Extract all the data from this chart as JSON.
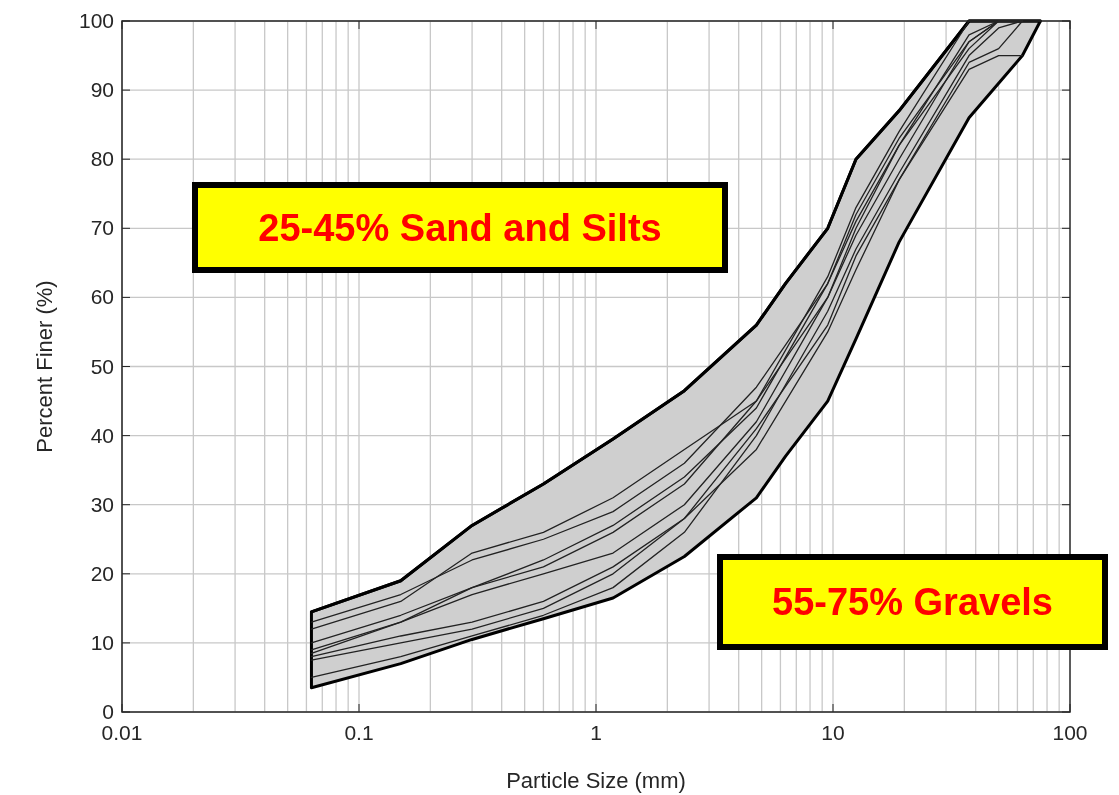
{
  "chart_data": {
    "type": "line",
    "xlabel": "Particle Size (mm)",
    "ylabel": "Percent Finer (%)",
    "log": "x",
    "grid": true,
    "marker": "none",
    "line_style": "solid",
    "xlim": [
      0.01,
      100
    ],
    "xticks": [
      0.01,
      0.1,
      1,
      10,
      100
    ],
    "ylim": [
      0,
      100
    ],
    "yticks": [
      0,
      10,
      20,
      30,
      40,
      50,
      60,
      70,
      80,
      90,
      100
    ],
    "annotations": [
      "25-45% Sand and Silts",
      "55-75% Gravels"
    ],
    "series": [
      {
        "color": "#000000",
        "x": [
          0.063,
          0.15,
          0.3,
          0.6,
          1.18,
          2.36,
          4.75,
          6.3,
          9.5,
          12.5,
          19,
          37.5,
          50,
          63,
          75
        ],
        "values": [
          14.5,
          19,
          27,
          33,
          39.5,
          46.5,
          56,
          62,
          70,
          80,
          87,
          100,
          100,
          100,
          100
        ],
        "lower": [
          3.5,
          7,
          10.5,
          13.5,
          16.5,
          22.5,
          31,
          37,
          45,
          54,
          68,
          86,
          91,
          95,
          100
        ],
        "upper": [
          14.5,
          19,
          27,
          33,
          39.5,
          46.5,
          56,
          62,
          70,
          80,
          87,
          100,
          100,
          100,
          100
        ]
      },
      {
        "color": "#222222",
        "x": [
          0.063,
          0.15,
          0.3,
          0.6,
          1.18,
          2.36,
          4.75,
          9.5,
          12.5,
          19,
          37.5,
          50,
          63
        ],
        "values": [
          13,
          17,
          22,
          25,
          29,
          36,
          47,
          62,
          72,
          83,
          97,
          100,
          100
        ]
      },
      {
        "color": "#222222",
        "x": [
          0.063,
          0.15,
          0.3,
          0.6,
          1.18,
          2.36,
          4.75,
          9.5,
          12.5,
          19,
          37.5,
          50,
          63
        ],
        "values": [
          12,
          16,
          23,
          26,
          31,
          38,
          45,
          60,
          70,
          82,
          98,
          100,
          100
        ]
      },
      {
        "color": "#222222",
        "x": [
          0.063,
          0.15,
          0.3,
          0.6,
          1.18,
          2.36,
          4.75,
          9.5,
          12.5,
          19,
          37.5,
          50,
          63
        ],
        "values": [
          10,
          14,
          18,
          21,
          26,
          33,
          45,
          63,
          73,
          84,
          100,
          100,
          100
        ]
      },
      {
        "color": "#222222",
        "x": [
          0.063,
          0.15,
          0.3,
          0.6,
          1.18,
          2.36,
          4.75,
          9.5,
          12.5,
          19,
          37.5,
          50,
          63
        ],
        "values": [
          9,
          13,
          18,
          22,
          27,
          34,
          44,
          62,
          71,
          82,
          96,
          100,
          100
        ]
      },
      {
        "color": "#222222",
        "x": [
          0.063,
          0.15,
          0.3,
          0.6,
          1.18,
          2.36,
          4.75,
          9.5,
          12.5,
          19,
          37.5,
          50,
          63
        ],
        "values": [
          8.5,
          13,
          17,
          20,
          23,
          30,
          42,
          60,
          69,
          80,
          97,
          100,
          100
        ]
      },
      {
        "color": "#222222",
        "x": [
          0.063,
          0.15,
          0.3,
          0.6,
          1.18,
          2.36,
          4.75,
          9.5,
          12.5,
          19,
          37.5,
          50,
          63
        ],
        "values": [
          7.5,
          10,
          12,
          15,
          20,
          28,
          38,
          55,
          64,
          77,
          94,
          96,
          100
        ]
      },
      {
        "color": "#222222",
        "x": [
          0.063,
          0.15,
          0.3,
          0.6,
          1.18,
          2.36,
          4.75,
          9.5,
          12.5,
          19,
          37.5,
          50,
          63
        ],
        "values": [
          5,
          8,
          11,
          14,
          18,
          26,
          40,
          58,
          67,
          78,
          95,
          99,
          100
        ]
      },
      {
        "color": "#222222",
        "x": [
          0.063,
          0.15,
          0.3,
          0.6,
          1.18,
          2.36,
          4.75,
          9.5,
          12.5,
          19,
          37.5,
          50,
          63
        ],
        "values": [
          8,
          11,
          13,
          16,
          21,
          28,
          41,
          56,
          66,
          77,
          93,
          95,
          95
        ]
      }
    ]
  }
}
